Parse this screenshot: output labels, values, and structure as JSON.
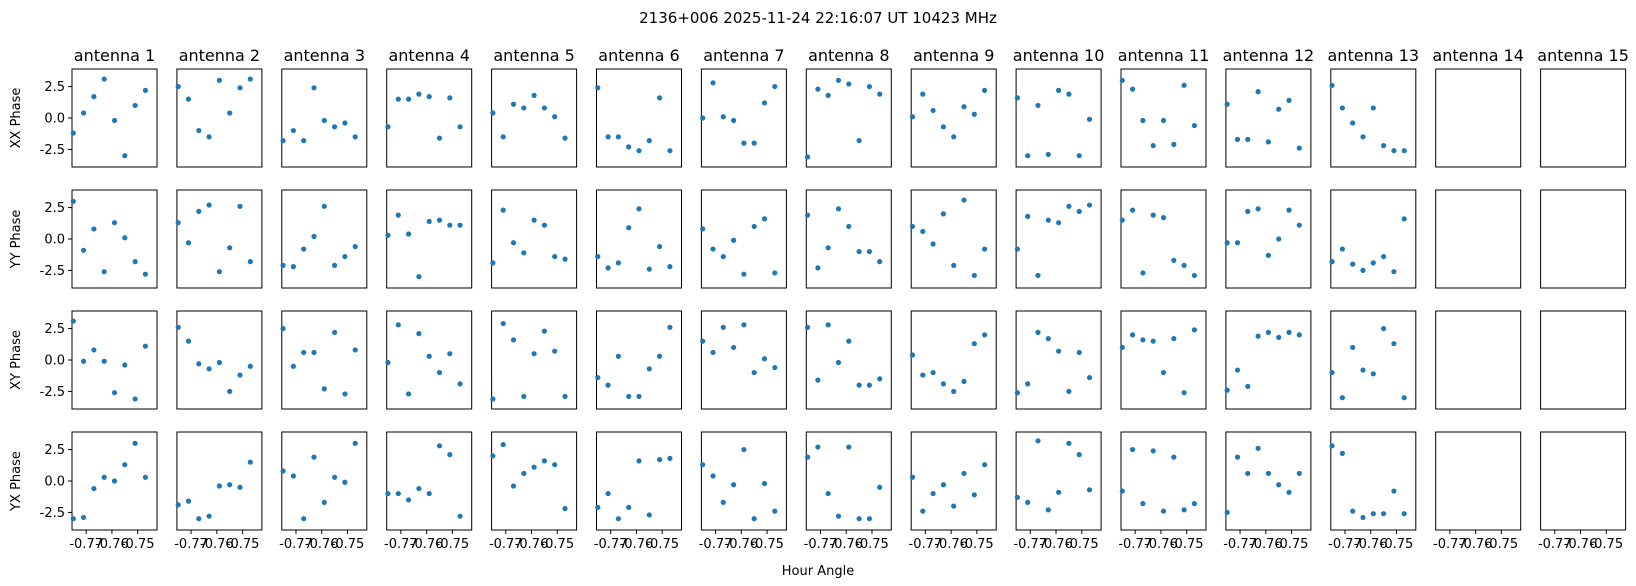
{
  "figure": {
    "title": "2136+006  2025-11-24 22:16:07 UT  10423 MHz",
    "xlabel": "Hour Angle"
  },
  "chart_data": {
    "type": "scatter",
    "grid": false,
    "marker_color": "#1f77b4",
    "columns": [
      "antenna 1",
      "antenna 2",
      "antenna 3",
      "antenna 4",
      "antenna 5",
      "antenna 6",
      "antenna 7",
      "antenna 8",
      "antenna 9",
      "antenna 10",
      "antenna 11",
      "antenna 12",
      "antenna 13",
      "antenna 14",
      "antenna 15"
    ],
    "rows": [
      "XX Phase",
      "YY Phase",
      "XY Phase",
      "YX Phase"
    ],
    "xlim": [
      -0.7755,
      -0.7425
    ],
    "ylim": [
      -3.9,
      3.9
    ],
    "x_ticks": [
      -0.77,
      -0.76,
      -0.75
    ],
    "x_tick_labels": [
      "-0.77",
      "-0.76",
      "-0.75"
    ],
    "y_ticks": [
      2.5,
      0.0,
      -2.5
    ],
    "y_tick_labels": [
      "2.5",
      "0.0",
      "-2.5"
    ],
    "x": [
      -0.775,
      -0.771,
      -0.767,
      -0.763,
      -0.759,
      -0.755,
      -0.751,
      -0.747,
      -0.743
    ],
    "values": [
      [
        [
          -1.2,
          0.4,
          1.7,
          3.1,
          -0.2,
          -3.0,
          1.0,
          2.2
        ],
        [
          2.5,
          1.5,
          -1.0,
          -1.5,
          3.0,
          0.4,
          2.4,
          3.1
        ],
        [
          -1.8,
          -1.0,
          -1.8,
          2.4,
          -0.2,
          -0.7,
          -0.4,
          -1.5
        ],
        [
          -0.7,
          1.5,
          1.5,
          1.9,
          1.7,
          -1.6,
          1.6,
          -0.7
        ],
        [
          0.4,
          -1.5,
          1.1,
          0.8,
          1.8,
          0.8,
          0.1,
          -1.6
        ],
        [
          2.4,
          -1.5,
          -1.5,
          -2.3,
          -2.6,
          -1.8,
          1.6,
          -2.6
        ],
        [
          0.0,
          2.8,
          0.1,
          -0.2,
          -2.0,
          -2.0,
          1.2,
          2.5
        ],
        [
          -3.1,
          2.3,
          1.8,
          3.0,
          2.7,
          -1.8,
          2.5,
          1.9
        ],
        [
          0.1,
          1.9,
          0.6,
          -0.7,
          -1.5,
          0.9,
          0.3,
          2.2
        ],
        [
          1.6,
          -3.0,
          1.0,
          -2.9,
          2.2,
          1.9,
          -3.0,
          -0.1
        ],
        [
          3.0,
          2.3,
          -0.2,
          -2.2,
          -0.2,
          -2.1,
          2.6,
          -0.6
        ],
        [
          1.1,
          -1.7,
          -1.7,
          2.1,
          -1.9,
          0.7,
          1.4,
          -2.4
        ],
        [
          2.6,
          0.8,
          -0.4,
          -1.5,
          0.8,
          -2.2,
          -2.6,
          -2.6
        ],
        [],
        []
      ],
      [
        [
          3.0,
          -0.9,
          0.8,
          -2.6,
          1.3,
          0.1,
          -1.8,
          -2.8
        ],
        [
          1.3,
          -0.3,
          2.2,
          2.7,
          -2.6,
          -0.7,
          2.6,
          -1.8
        ],
        [
          -2.1,
          -2.2,
          -0.8,
          0.2,
          2.6,
          -2.1,
          -1.4,
          -0.6
        ],
        [
          0.3,
          1.9,
          0.4,
          -3.0,
          1.4,
          1.5,
          1.1,
          1.1
        ],
        [
          -1.9,
          2.3,
          -0.3,
          -1.1,
          1.5,
          1.1,
          -1.4,
          -1.6
        ],
        [
          -1.4,
          -2.3,
          -1.9,
          0.9,
          2.4,
          -2.4,
          -0.6,
          -2.2
        ],
        [
          0.8,
          -0.8,
          -1.4,
          -0.1,
          -2.8,
          1.0,
          1.6,
          -2.7
        ],
        [
          1.9,
          -2.3,
          -0.7,
          2.4,
          1.0,
          -1.0,
          -1.0,
          -1.8
        ],
        [
          1.0,
          0.6,
          -0.4,
          2.0,
          -2.1,
          3.1,
          -2.9,
          -0.8
        ],
        [
          -0.8,
          1.8,
          -2.9,
          1.5,
          1.3,
          2.6,
          2.2,
          2.7
        ],
        [
          1.5,
          2.3,
          -2.7,
          1.9,
          1.7,
          -1.7,
          -2.1,
          -2.9
        ],
        [
          -0.3,
          -0.3,
          2.2,
          2.4,
          -1.3,
          0.0,
          2.3,
          1.1
        ],
        [
          -1.8,
          -0.8,
          -2.0,
          -2.5,
          -1.9,
          -1.4,
          -2.6,
          1.6
        ],
        [],
        []
      ],
      [
        [
          3.1,
          -0.1,
          0.8,
          -0.1,
          -2.6,
          -0.4,
          -3.1,
          1.1
        ],
        [
          2.6,
          1.5,
          -0.3,
          -0.7,
          -0.2,
          -2.5,
          -1.2,
          -0.5
        ],
        [
          2.5,
          -0.5,
          0.6,
          0.6,
          -2.3,
          2.2,
          -2.7,
          0.8
        ],
        [
          -0.2,
          2.8,
          -2.7,
          2.1,
          0.3,
          -1.0,
          0.5,
          -1.9
        ],
        [
          -3.1,
          2.9,
          1.6,
          -2.9,
          0.5,
          2.3,
          0.7,
          -2.9
        ],
        [
          -1.4,
          -2.0,
          0.3,
          -2.9,
          -2.9,
          -0.7,
          0.3,
          2.6
        ],
        [
          1.5,
          0.6,
          2.6,
          1.0,
          2.8,
          -1.0,
          0.1,
          -0.6
        ],
        [
          2.6,
          -1.6,
          2.8,
          -0.2,
          1.5,
          -2.0,
          -2.0,
          -1.5
        ],
        [
          0.4,
          -1.2,
          -1.0,
          -1.9,
          -2.5,
          -1.7,
          1.3,
          2.0
        ],
        [
          -2.6,
          -1.9,
          2.2,
          1.7,
          0.7,
          -2.5,
          0.6,
          -1.4
        ],
        [
          1.0,
          2.0,
          1.6,
          1.5,
          -1.0,
          1.7,
          -2.6,
          2.4
        ],
        [
          -2.4,
          -0.8,
          -2.1,
          1.9,
          2.2,
          1.8,
          2.2,
          2.0
        ],
        [
          -1.0,
          -3.0,
          1.0,
          -0.8,
          -1.1,
          2.5,
          1.3,
          -3.0
        ],
        [],
        []
      ],
      [
        [
          -3.0,
          -2.9,
          -0.6,
          0.3,
          0.0,
          1.3,
          3.0,
          0.3
        ],
        [
          -1.9,
          -1.6,
          -3.0,
          -2.8,
          -0.4,
          -0.3,
          -0.5,
          1.5
        ],
        [
          0.8,
          0.4,
          -3.0,
          1.9,
          -1.7,
          0.3,
          -0.1,
          3.0
        ],
        [
          -1.0,
          -1.0,
          -1.5,
          -0.6,
          -1.0,
          2.8,
          2.1,
          -2.8
        ],
        [
          2.0,
          2.9,
          -0.4,
          0.6,
          1.1,
          1.6,
          1.3,
          -2.2
        ],
        [
          -2.1,
          -1.0,
          -3.0,
          -2.1,
          1.6,
          -2.7,
          1.7,
          1.8
        ],
        [
          1.3,
          0.4,
          -1.7,
          -0.3,
          2.5,
          -3.0,
          -0.2,
          -2.4
        ],
        [
          1.9,
          2.7,
          -1.0,
          -2.8,
          2.7,
          -3.0,
          -3.0,
          -0.5
        ],
        [
          0.3,
          -2.4,
          -1.0,
          -0.3,
          -2.0,
          0.6,
          -1.1,
          1.3
        ],
        [
          -1.3,
          -1.7,
          3.2,
          -2.3,
          -0.9,
          3.0,
          2.1,
          -0.7
        ],
        [
          -0.8,
          2.5,
          -1.8,
          2.4,
          -2.4,
          1.9,
          -2.3,
          -1.8
        ],
        [
          -2.5,
          1.9,
          0.6,
          2.6,
          0.6,
          -0.3,
          -0.9,
          0.6
        ],
        [
          2.8,
          2.2,
          -2.4,
          -2.9,
          -2.6,
          -2.6,
          -0.8,
          -2.6
        ],
        [],
        []
      ]
    ]
  }
}
